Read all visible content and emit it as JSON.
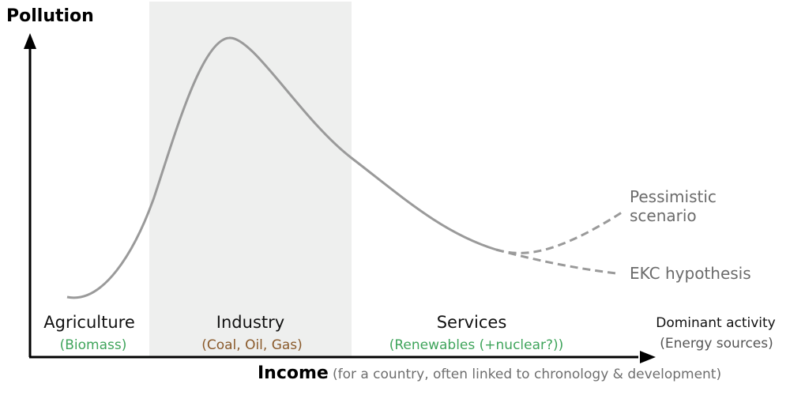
{
  "axes": {
    "y_label": "Pollution",
    "x_label": "Income",
    "x_note": "(for a country, often linked to chronology & development)"
  },
  "stages": [
    {
      "name": "Agriculture",
      "energy": "(Biomass)"
    },
    {
      "name": "Industry",
      "energy": "(Coal, Oil, Gas)"
    },
    {
      "name": "Services",
      "energy": "(Renewables (+nuclear?))"
    }
  ],
  "right_labels": {
    "activity": "Dominant activity",
    "sources": "(Energy sources)"
  },
  "scenarios": {
    "pessimistic_line1": "Pessimistic",
    "pessimistic_line2": "scenario",
    "ekc": "EKC hypothesis"
  },
  "colors": {
    "curve": "#9a9a9a",
    "industry_band": "#eeefee",
    "biomass_text": "#3fa45b",
    "fossil_text": "#8a5a2b",
    "renewables_text": "#3fa45b",
    "axis": "#000000"
  }
}
